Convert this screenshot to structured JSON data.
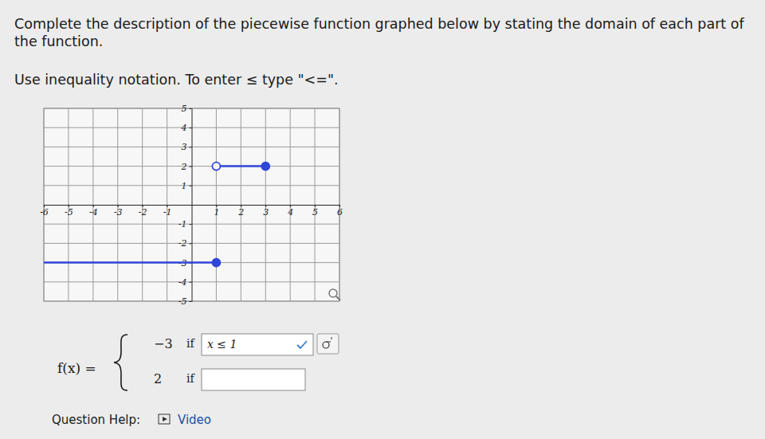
{
  "page": {
    "prompt_lines": [
      "Complete the description of the piecewise function graphed below by stating the domain of each part of",
      "the function."
    ],
    "instruction": "Use inequality notation. To enter ≤ type \"<=\".",
    "function_name": "f(x) =",
    "pieces": [
      {
        "value": "−3",
        "condition_word": "if",
        "answer": "x ≤ 1"
      },
      {
        "value": "2",
        "condition_word": "if"
      }
    ],
    "help_label": "Question Help:",
    "help_link": "Video"
  },
  "chart_data": {
    "type": "line",
    "xlim": [
      -6,
      6
    ],
    "ylim": [
      -5,
      5
    ],
    "xticks": [
      -6,
      -5,
      -4,
      -3,
      -2,
      -1,
      1,
      2,
      3,
      4,
      5,
      6
    ],
    "yticks": [
      -5,
      -4,
      -3,
      -2,
      -1,
      1,
      2,
      3,
      4,
      5
    ],
    "grid": true,
    "series": [
      {
        "type": "line",
        "line_style": "solid",
        "color": "#3046d9",
        "x": [
          -6,
          1
        ],
        "values": [
          -3,
          -3
        ]
      },
      {
        "type": "line",
        "line_style": "solid",
        "color": "#3046d9",
        "x": [
          1,
          3
        ],
        "values": [
          2,
          2
        ]
      },
      {
        "type": "scatter",
        "marker": "filled",
        "color": "#3046d9",
        "x": [
          1,
          3
        ],
        "values": [
          -3,
          2
        ]
      },
      {
        "type": "scatter",
        "marker": "open",
        "color": "#3046d9",
        "x": [
          1
        ],
        "values": [
          2
        ]
      }
    ]
  }
}
